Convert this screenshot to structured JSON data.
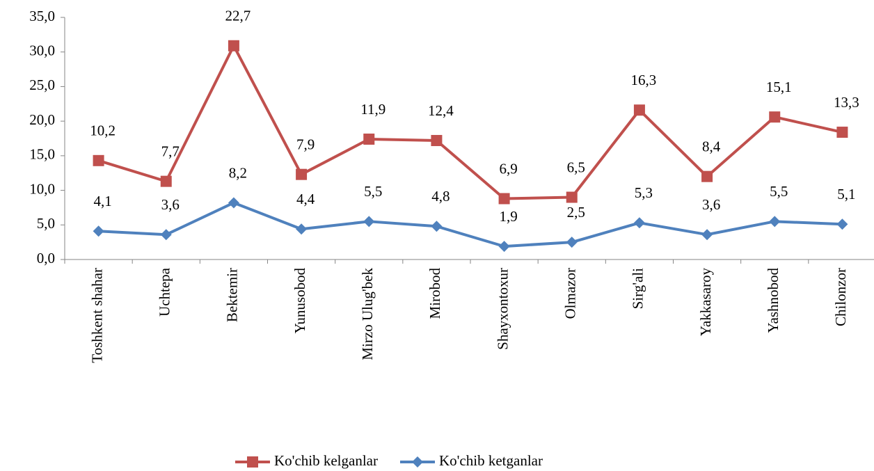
{
  "chart_data": {
    "type": "line",
    "stacked": true,
    "categories": [
      "Toshkent shahar",
      "Uchtepa",
      "Bektemir",
      "Yunusobod",
      "Mirzo Ulug'bek",
      "Mirobod",
      "Shayxontoxur",
      "Olmazor",
      "Sirg'ali",
      "Yakkasaroy",
      "Yashnobod",
      "Chilonzor"
    ],
    "series": [
      {
        "name": "Ko'chib kelganlar",
        "color": "#c0504d",
        "marker": "square",
        "values": [
          10.2,
          7.7,
          22.7,
          7.9,
          11.9,
          12.4,
          6.9,
          6.5,
          16.3,
          8.4,
          15.1,
          13.3
        ],
        "value_labels": [
          "10,2",
          "7,7",
          "22,7",
          "7,9",
          "11,9",
          "12,4",
          "6,9",
          "6,5",
          "16,3",
          "8,4",
          "15,1",
          "13,3"
        ]
      },
      {
        "name": "Ko'chib ketganlar",
        "color": "#4f81bd",
        "marker": "diamond",
        "values": [
          4.1,
          3.6,
          8.2,
          4.4,
          5.5,
          4.8,
          1.9,
          2.5,
          5.3,
          3.6,
          5.5,
          5.1
        ],
        "value_labels": [
          "4,1",
          "3,6",
          "8,2",
          "4,4",
          "5,5",
          "4,8",
          "1,9",
          "2,5",
          "5,3",
          "3,6",
          "5,5",
          "5,1"
        ]
      }
    ],
    "ylim": [
      0,
      35
    ],
    "yticks": [
      {
        "value": 0,
        "label": "0,0"
      },
      {
        "value": 5,
        "label": "5,0"
      },
      {
        "value": 10,
        "label": "10,0"
      },
      {
        "value": 15,
        "label": "15,0"
      },
      {
        "value": 20,
        "label": "20,0"
      },
      {
        "value": 25,
        "label": "25,0"
      },
      {
        "value": 30,
        "label": "30,0"
      },
      {
        "value": 35,
        "label": "35,0"
      }
    ],
    "grid": false,
    "legend": "bottom"
  }
}
